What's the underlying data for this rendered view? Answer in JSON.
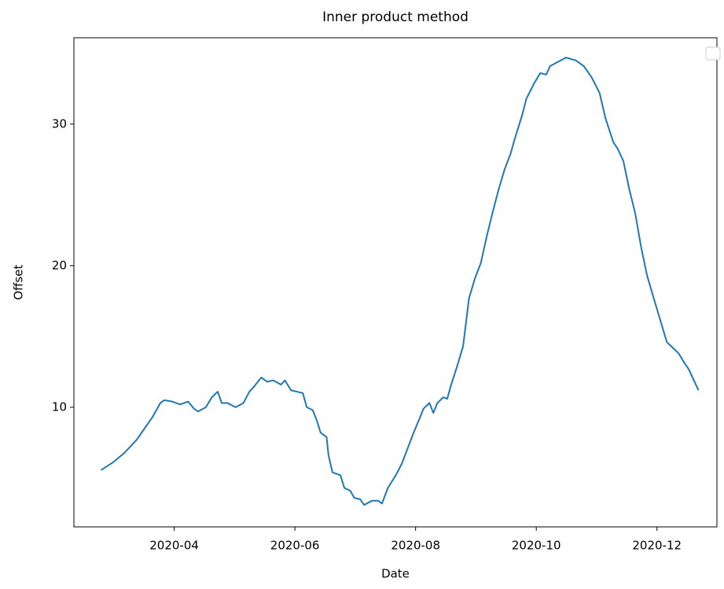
{
  "chart_data": {
    "type": "line",
    "title": "Inner product method",
    "xlabel": "Date",
    "ylabel": "Offset",
    "color": "#1f77b4",
    "x": [
      54,
      60,
      66,
      72,
      76,
      80,
      84,
      86,
      90,
      94,
      98,
      101,
      103,
      107,
      110,
      113,
      115,
      118,
      122,
      126,
      129,
      131,
      135,
      138,
      141,
      145,
      147,
      150,
      153,
      156,
      158,
      161,
      163,
      165,
      168,
      169,
      171,
      175,
      177,
      180,
      182,
      185,
      187,
      191,
      194,
      196,
      199,
      203,
      206,
      209,
      212,
      215,
      217,
      220,
      222,
      224,
      227,
      229,
      231,
      234,
      237,
      240,
      243,
      246,
      249,
      252,
      255,
      258,
      261,
      263,
      267,
      269,
      273,
      276,
      279,
      281,
      285,
      289,
      294,
      298,
      302,
      306,
      309,
      313,
      315,
      318,
      321,
      324,
      327,
      330,
      334,
      337,
      340,
      343,
      346,
      349,
      351,
      356
    ],
    "values": [
      5.56,
      6.1,
      6.8,
      7.7,
      8.5,
      9.3,
      10.3,
      10.5,
      10.4,
      10.2,
      10.4,
      9.9,
      9.7,
      10.0,
      10.7,
      11.1,
      10.3,
      10.3,
      10.0,
      10.3,
      11.1,
      11.4,
      12.1,
      11.8,
      11.9,
      11.6,
      11.9,
      11.2,
      11.1,
      11.0,
      10.0,
      9.8,
      9.1,
      8.2,
      7.9,
      6.6,
      5.4,
      5.2,
      4.3,
      4.1,
      3.6,
      3.5,
      3.1,
      3.4,
      3.4,
      3.2,
      4.3,
      5.2,
      6.0,
      7.1,
      8.2,
      9.2,
      9.9,
      10.3,
      9.6,
      10.3,
      10.7,
      10.6,
      11.6,
      12.9,
      14.3,
      17.7,
      19.1,
      20.2,
      22.1,
      23.8,
      25.4,
      26.8,
      27.9,
      28.9,
      30.7,
      31.8,
      32.9,
      33.6,
      33.5,
      34.1,
      34.4,
      34.7,
      34.5,
      34.1,
      33.3,
      32.2,
      30.4,
      28.7,
      28.3,
      27.4,
      25.4,
      23.7,
      21.3,
      19.3,
      17.4,
      16.0,
      14.6,
      14.2,
      13.8,
      13.1,
      12.7,
      11.2
    ],
    "xlim": [
      40.3,
      365.3
    ],
    "ylim": [
      1.55,
      36.1
    ],
    "xticks": [
      {
        "value": 91,
        "label": "2020-04"
      },
      {
        "value": 152,
        "label": "2020-06"
      },
      {
        "value": 213,
        "label": "2020-08"
      },
      {
        "value": 274,
        "label": "2020-10"
      },
      {
        "value": 335,
        "label": "2020-12"
      }
    ],
    "yticks": [
      10,
      20,
      30
    ],
    "grid": false
  }
}
